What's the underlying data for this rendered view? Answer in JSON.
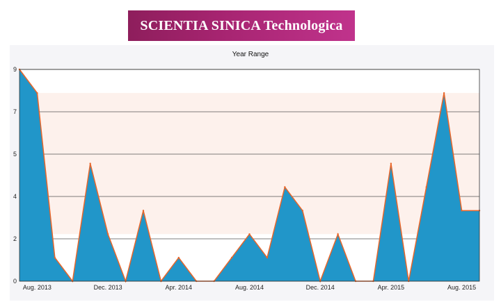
{
  "banner": {
    "title": "SCIENTIA SINICA Technologica"
  },
  "chart_data": {
    "type": "area",
    "title": "Year Range",
    "xlabel": "",
    "ylabel": "",
    "ylim": [
      0,
      9
    ],
    "y_ticks": [
      "0",
      "2",
      "4",
      "5",
      "7",
      "9"
    ],
    "x_tick_labels": [
      "Aug. 2013",
      "Dec. 2013",
      "Apr. 2014",
      "Aug. 2014",
      "Dec. 2014",
      "Apr. 2015",
      "Aug. 2015"
    ],
    "x": [
      "Jul. 2013",
      "Aug. 2013",
      "Sep. 2013",
      "Oct. 2013",
      "Nov. 2013",
      "Dec. 2013",
      "Jan. 2014",
      "Feb. 2014",
      "Mar. 2014",
      "Apr. 2014",
      "May 2014",
      "Jun. 2014",
      "Jul. 2014",
      "Aug. 2014",
      "Sep. 2014",
      "Oct. 2014",
      "Nov. 2014",
      "Dec. 2014",
      "Jan. 2015",
      "Feb. 2015",
      "Mar. 2015",
      "Apr. 2015",
      "May 2015",
      "Jun. 2015",
      "Jul. 2015",
      "Aug. 2015",
      "Sep. 2015"
    ],
    "series": [
      {
        "values": [
          9,
          8,
          1,
          0,
          5,
          2,
          0,
          3,
          0,
          1,
          0,
          0,
          1,
          2,
          1,
          4,
          3,
          0,
          2,
          0,
          0,
          5,
          0,
          4,
          8,
          3,
          3
        ]
      }
    ],
    "grid": true,
    "band": {
      "from": 2,
      "to": 8
    },
    "colors": {
      "fill": "#2196c9",
      "line": "#e8662a",
      "band": "#fdf1ec",
      "grid": "#555555"
    }
  }
}
